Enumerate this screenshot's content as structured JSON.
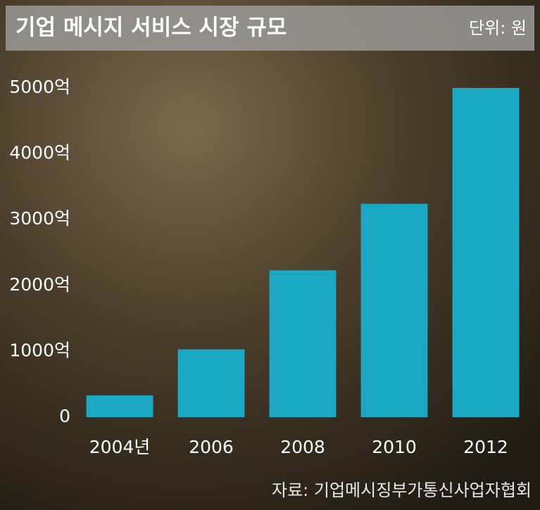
{
  "chart_data": {
    "type": "bar",
    "title": "기업 메시지 서비스 시장 규모",
    "unit_note": "단위: 원",
    "source": "자료: 기업메시징부가통신사업자협회",
    "categories": [
      "2004년",
      "2006",
      "2008",
      "2010",
      "2012"
    ],
    "values": [
      330,
      1030,
      2230,
      3240,
      5000
    ],
    "color": "#1aa8c4",
    "ylim": [
      0,
      5000
    ],
    "yticks": [
      0,
      {
        "value": 1000,
        "label": "1000억"
      },
      {
        "value": 2000,
        "label": "2000억"
      },
      {
        "value": 3000,
        "label": "3000억"
      },
      {
        "value": 4000,
        "label": "4000억"
      },
      {
        "value": 5000,
        "label": "5000억"
      }
    ],
    "grid": false
  }
}
